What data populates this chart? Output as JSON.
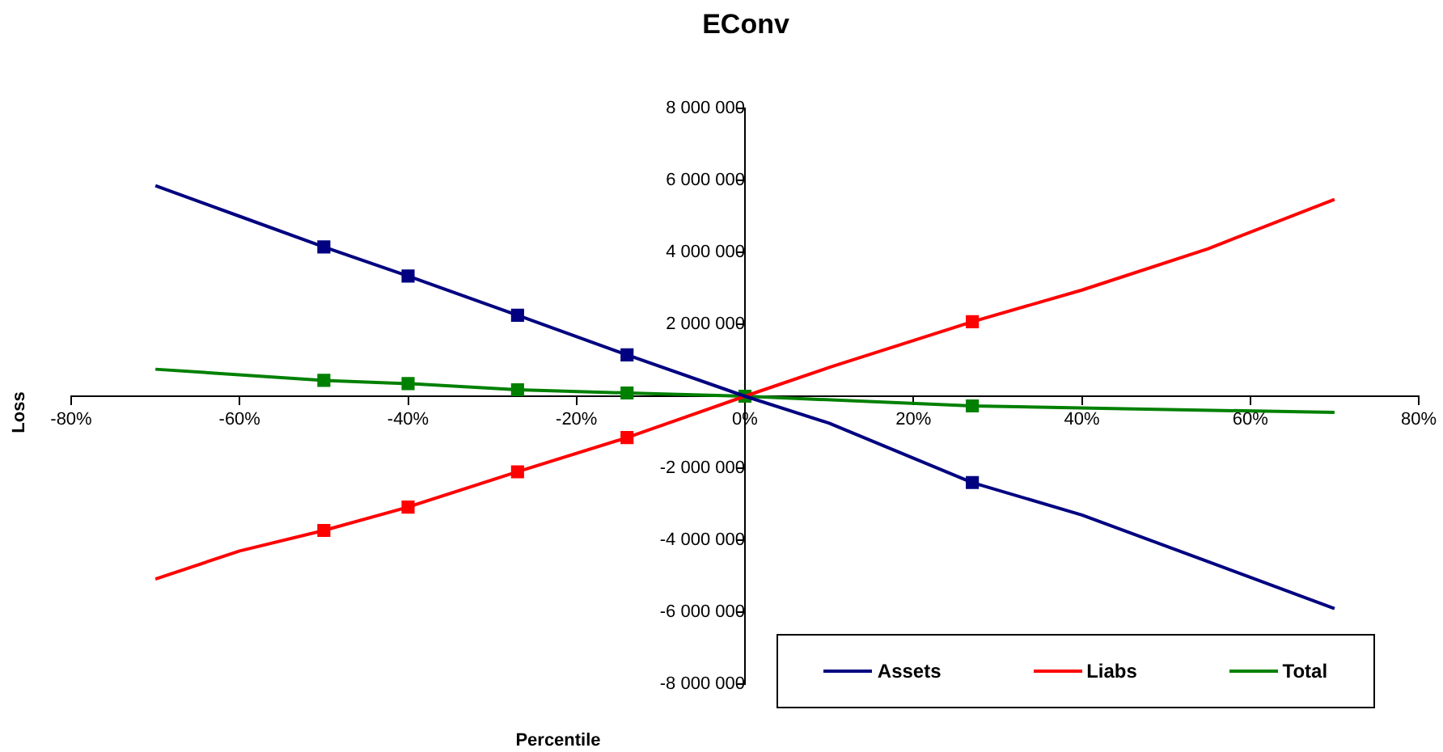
{
  "chart_data": {
    "type": "line",
    "title": "EConv",
    "xlabel": "Percentile",
    "ylabel": "Loss",
    "xlim": [
      -80,
      80
    ],
    "xticks": [
      {
        "value": -80,
        "label": "-80%"
      },
      {
        "value": -60,
        "label": "-60%"
      },
      {
        "value": -40,
        "label": "-40%"
      },
      {
        "value": -20,
        "label": "-20%"
      },
      {
        "value": 0,
        "label": "0%"
      },
      {
        "value": 20,
        "label": "20%"
      },
      {
        "value": 40,
        "label": "40%"
      },
      {
        "value": 60,
        "label": "60%"
      },
      {
        "value": 80,
        "label": "80%"
      }
    ],
    "ylim": [
      -8000000,
      8000000
    ],
    "yticks": [
      {
        "value": -8000000,
        "label": "-8 000 000"
      },
      {
        "value": -6000000,
        "label": "-6 000 000"
      },
      {
        "value": -4000000,
        "label": "-4 000 000"
      },
      {
        "value": -2000000,
        "label": "-2 000 000"
      },
      {
        "value": 2000000,
        "label": "2 000 000"
      },
      {
        "value": 4000000,
        "label": "4 000 000"
      },
      {
        "value": 6000000,
        "label": "6 000 000"
      },
      {
        "value": 8000000,
        "label": "8 000 000"
      }
    ],
    "grid": false,
    "legend": "bottom",
    "series": [
      {
        "name": "Assets",
        "color": "#000080",
        "type": "line",
        "marker": "none",
        "x": [
          -70,
          -60,
          -50,
          -40,
          -27,
          -14,
          0,
          10,
          27,
          40,
          55,
          70
        ],
        "values": [
          5850000,
          5000000,
          4150000,
          3340000,
          2250000,
          1150000,
          0,
          -750000,
          -2400000,
          -3300000,
          -4600000,
          -5900000
        ]
      },
      {
        "name": "Liabs",
        "color": "#ff0000",
        "type": "line",
        "marker": "none",
        "x": [
          -70,
          -60,
          -50,
          -40,
          -27,
          -14,
          0,
          10,
          27,
          40,
          55,
          70
        ],
        "values": [
          -5080000,
          -4300000,
          -3730000,
          -3080000,
          -2100000,
          -1150000,
          0,
          800000,
          2070000,
          2950000,
          4100000,
          5470000
        ]
      },
      {
        "name": "Total",
        "color": "#008000",
        "type": "line",
        "marker": "none",
        "x": [
          -70,
          -50,
          -40,
          -27,
          -14,
          0,
          27,
          45,
          70
        ],
        "values": [
          750000,
          440000,
          350000,
          180000,
          90000,
          0,
          -270000,
          -350000,
          -450000
        ]
      },
      {
        "color": "#000080",
        "type": "scatter",
        "marker": "square",
        "x": [
          -50,
          -40,
          -27,
          -14,
          27
        ],
        "values": [
          4150000,
          3340000,
          2250000,
          1150000,
          -2400000
        ]
      },
      {
        "color": "#ff0000",
        "type": "scatter",
        "marker": "square",
        "x": [
          -50,
          -40,
          -27,
          -14,
          27
        ],
        "values": [
          -3730000,
          -3080000,
          -2100000,
          -1150000,
          2070000
        ]
      },
      {
        "color": "#008000",
        "type": "scatter",
        "marker": "square",
        "x": [
          -50,
          -40,
          -27,
          -14,
          0,
          27
        ],
        "values": [
          440000,
          350000,
          180000,
          90000,
          0,
          -270000
        ]
      }
    ]
  }
}
